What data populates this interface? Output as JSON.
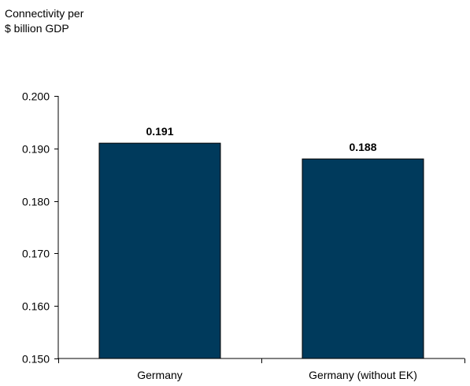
{
  "chart_data": {
    "type": "bar",
    "ylabel_lines": [
      "Connectivity per",
      "$ billion GDP"
    ],
    "title": "",
    "xlabel": "",
    "categories": [
      "Germany",
      "Germany (without EK)"
    ],
    "values": [
      0.191,
      0.188
    ],
    "data_labels": [
      "0.191",
      "0.188"
    ],
    "ylim": [
      0.15,
      0.2
    ],
    "yticks": [
      0.15,
      0.16,
      0.17,
      0.18,
      0.19,
      0.2
    ],
    "ytick_labels": [
      "0.150",
      "0.160",
      "0.170",
      "0.180",
      "0.190",
      "0.200"
    ],
    "grid": false,
    "legend": "none",
    "bar_color": "#003a5c",
    "bar_edge_color": "#000000"
  }
}
